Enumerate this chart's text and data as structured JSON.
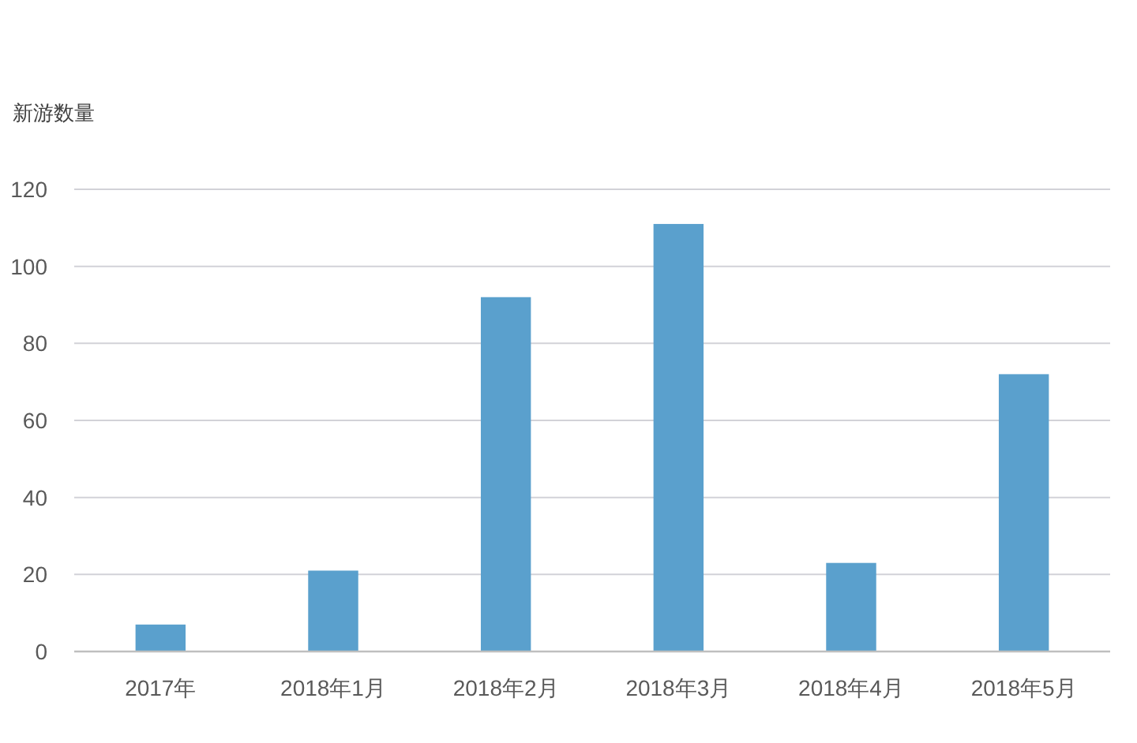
{
  "chart_data": {
    "type": "bar",
    "ylabel": "新游数量",
    "categories": [
      "2017年",
      "2018年1月",
      "2018年2月",
      "2018年3月",
      "2018年4月",
      "2018年5月"
    ],
    "values": [
      7,
      21,
      92,
      111,
      23,
      72
    ],
    "color": "#5aa0cd",
    "ylim": [
      0,
      120
    ],
    "yticks": [
      0,
      20,
      40,
      60,
      80,
      100,
      120
    ],
    "grid": "y"
  }
}
